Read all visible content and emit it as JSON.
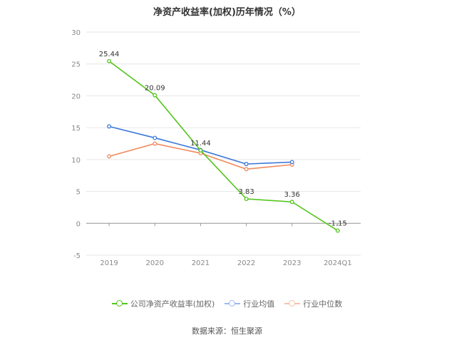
{
  "chart_data": {
    "type": "line",
    "title": "净资产收益率(加权)历年情况（%）",
    "categories": [
      "2019",
      "2020",
      "2021",
      "2022",
      "2023",
      "2024Q1"
    ],
    "ylim": [
      -5,
      30
    ],
    "yticks": [
      -5,
      0,
      5,
      10,
      15,
      20,
      25,
      30
    ],
    "grid": true,
    "legend_position": "bottom",
    "series": [
      {
        "name": "公司净资产收益率(加权)",
        "color": "#52c41a",
        "values": [
          25.44,
          20.09,
          11.44,
          3.83,
          3.36,
          -1.15
        ],
        "labels": [
          "25.44",
          "20.09",
          "11.44",
          "3.83",
          "3.36",
          "-1.15"
        ]
      },
      {
        "name": "行业均值",
        "color": "#3a77d8",
        "values": [
          15.2,
          13.4,
          11.5,
          9.3,
          9.6,
          null
        ]
      },
      {
        "name": "行业中位数",
        "color": "#f08a5d",
        "values": [
          10.5,
          12.5,
          11.0,
          8.5,
          9.2,
          null
        ]
      }
    ]
  },
  "source": "数据来源：恒生聚源"
}
